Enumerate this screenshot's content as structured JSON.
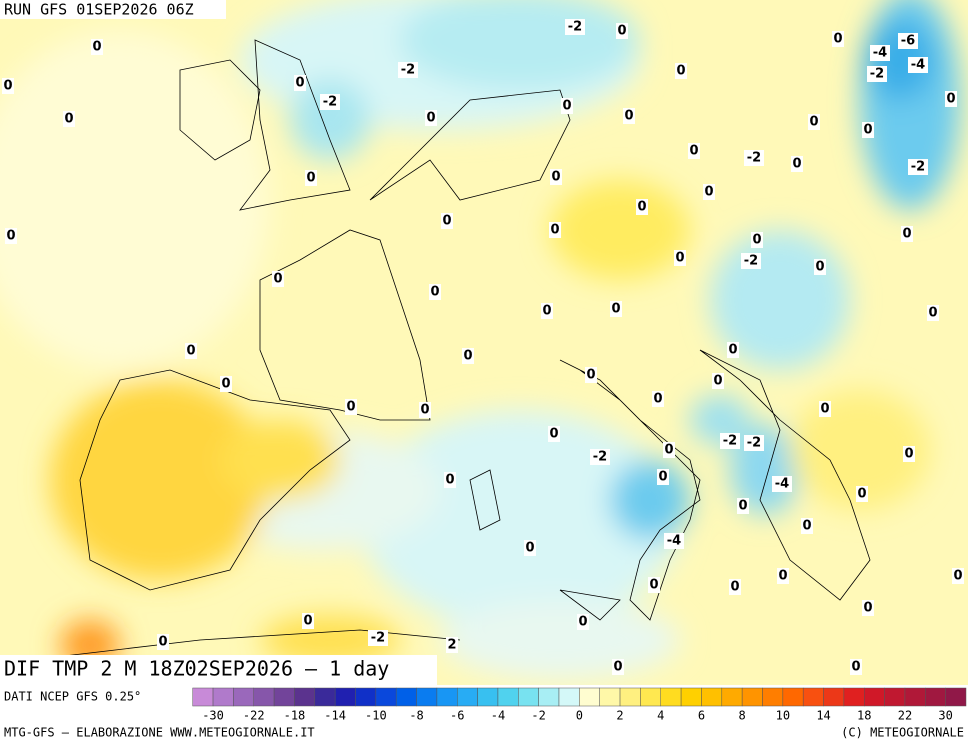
{
  "header": "RUN GFS 01SEP2026 06Z",
  "title": "DIF TMP 2 M 18Z02SEP2026 – 1 day",
  "data_source": "DATI NCEP GFS 0.25°",
  "credit_left": "MTG-GFS – ELABORAZIONE WWW.METEOGIORNALE.IT",
  "credit_right": "(C) METEOGIORNALE",
  "colorbar": {
    "colors": [
      "#c88ad8",
      "#b07acb",
      "#9a68bb",
      "#8656aa",
      "#72449a",
      "#5b338e",
      "#3a2a9a",
      "#2020b0",
      "#1030c8",
      "#0a48dc",
      "#0060e8",
      "#0a7cf0",
      "#1896f4",
      "#28acf4",
      "#38c0f0",
      "#50d2ee",
      "#78e2f0",
      "#a8eef4",
      "#d4f8f8",
      "#fffdd0",
      "#fff8a8",
      "#fff080",
      "#ffe850",
      "#ffdc20",
      "#ffd000",
      "#ffc000",
      "#ffaa00",
      "#ff9400",
      "#ff7e00",
      "#ff6800",
      "#f85010",
      "#ec3818",
      "#e02020",
      "#d01828",
      "#c01830",
      "#b01838",
      "#a01840",
      "#901848"
    ],
    "ticks": [
      -30,
      -22,
      -18,
      -14,
      -10,
      -8,
      -6,
      -4,
      -2,
      0,
      2,
      4,
      6,
      8,
      10,
      14,
      18,
      22,
      30
    ]
  },
  "contour_labels": [
    0,
    0,
    0,
    -2,
    -2,
    -2,
    0,
    0,
    0,
    0,
    0,
    0,
    -4,
    -6,
    -4,
    -2,
    0,
    0,
    0,
    0,
    -2,
    0,
    0,
    -2,
    0,
    0,
    0,
    0,
    0,
    0,
    0,
    0,
    -2,
    0,
    0,
    0,
    0,
    0,
    0,
    0,
    0,
    0,
    0,
    0,
    0,
    0,
    0,
    0,
    0,
    0,
    0,
    0,
    0,
    -2,
    -2,
    0,
    -2,
    0,
    -4,
    0,
    0,
    0,
    -4,
    0,
    0,
    0,
    0,
    0,
    0,
    0,
    0,
    0,
    -2,
    0,
    2,
    0,
    0
  ]
}
